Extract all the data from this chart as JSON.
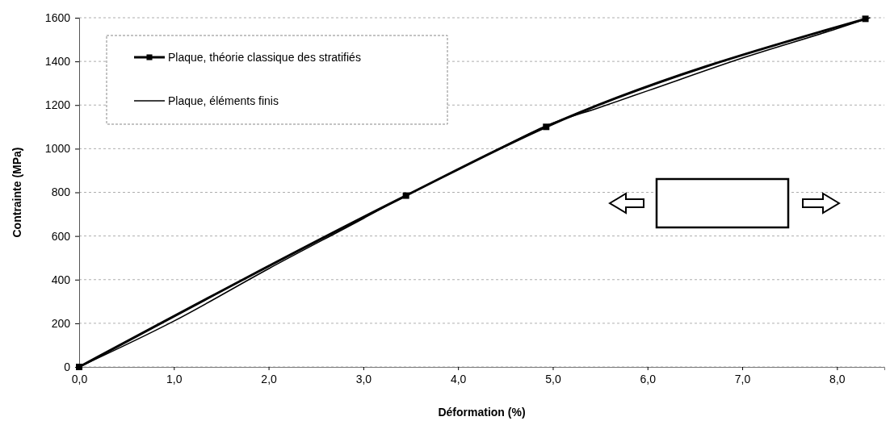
{
  "chart_data": {
    "type": "line",
    "xlabel": "Déformation (%)",
    "ylabel": "Contrainte (MPa)",
    "xlim": [
      0,
      8.5
    ],
    "ylim": [
      0,
      1600
    ],
    "xticks": [
      {
        "value": 0,
        "label": "0,0"
      },
      {
        "value": 1,
        "label": "1,0"
      },
      {
        "value": 2,
        "label": "2,0"
      },
      {
        "value": 3,
        "label": "3,0"
      },
      {
        "value": 4,
        "label": "4,0"
      },
      {
        "value": 5,
        "label": "5,0"
      },
      {
        "value": 6,
        "label": "6,0"
      },
      {
        "value": 7,
        "label": "7,0"
      },
      {
        "value": 8,
        "label": "8,0"
      }
    ],
    "yticks": [
      0,
      200,
      400,
      600,
      800,
      1000,
      1200,
      1400,
      1600
    ],
    "grid": "y",
    "legend": "top left",
    "series": [
      {
        "name": "Plaque, théorie classique des stratifiés",
        "color": "#000000",
        "marker": "square",
        "x": [
          0,
          3.45,
          4.93,
          8.3
        ],
        "values": [
          0,
          785,
          1100,
          1595
        ]
      },
      {
        "name": "Plaque, éléments finis",
        "color": "#000000",
        "marker": "none",
        "x": [
          0,
          1,
          2,
          3,
          3.45,
          4,
          4.5,
          4.93,
          5.5,
          6,
          7,
          8,
          8.35
        ],
        "values": [
          0,
          210,
          450,
          680,
          785,
          905,
          1015,
          1105,
          1190,
          1265,
          1415,
          1550,
          1600
        ]
      }
    ]
  }
}
